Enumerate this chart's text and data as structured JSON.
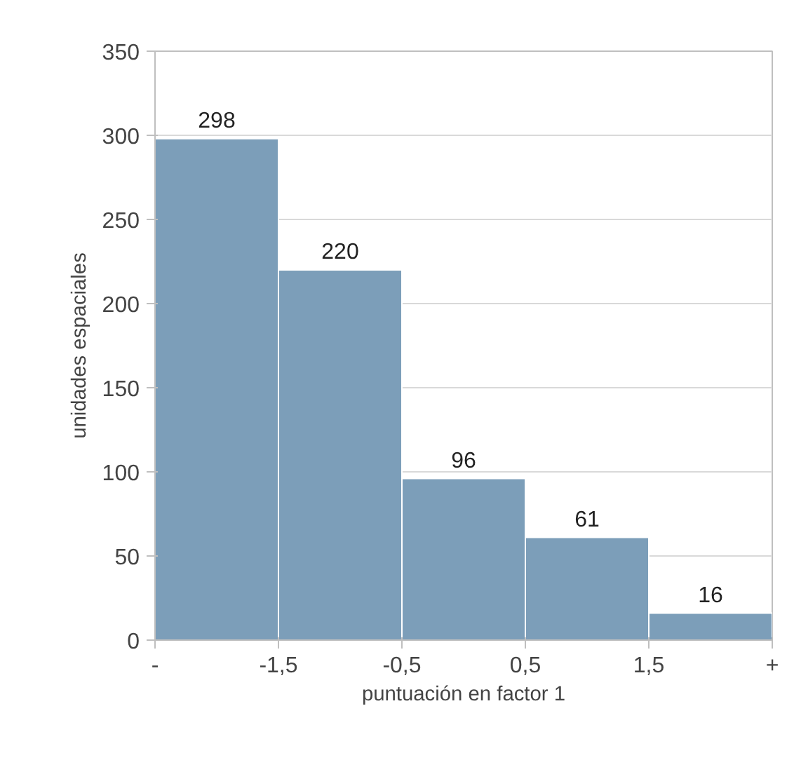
{
  "chart_data": {
    "type": "histogram",
    "xlabel": "puntuación en factor 1",
    "ylabel": "unidades espaciales",
    "bins": [
      -2.5,
      -1.5,
      -0.5,
      0.5,
      1.5,
      2.5
    ],
    "values": [
      298,
      220,
      96,
      61,
      16
    ],
    "color": "#7c9eb9",
    "data_labels": true,
    "xlim": [
      -2.5,
      2.5
    ],
    "xticks": [
      {
        "value": -2.5,
        "label": "-"
      },
      {
        "value": -1.5,
        "label": "-1,5"
      },
      {
        "value": -0.5,
        "label": "-0,5"
      },
      {
        "value": 0.5,
        "label": "0,5"
      },
      {
        "value": 1.5,
        "label": "1,5"
      },
      {
        "value": 2.5,
        "label": "+"
      }
    ],
    "ylim": [
      0,
      350
    ],
    "yticks": [
      0,
      50,
      100,
      150,
      200,
      250,
      300,
      350
    ],
    "grid": "y"
  }
}
